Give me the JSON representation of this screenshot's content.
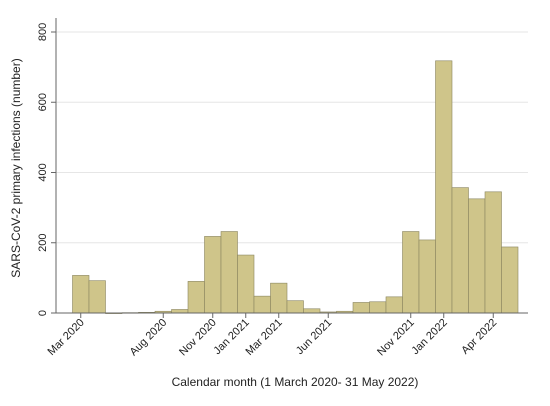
{
  "chart_data": {
    "type": "bar",
    "xlabel": "Calendar month (1 March 2020- 31 May 2022)",
    "ylabel": "SARS-CoV-2 primary infections (number)",
    "ylim": [
      0,
      800
    ],
    "yticks": [
      0,
      200,
      400,
      600,
      800
    ],
    "grid": true,
    "colors": {
      "bar_fill": "#cfc58a",
      "bar_stroke": "#8a8560",
      "grid": "#e6e6e6",
      "axis": "#666666"
    },
    "categories": [
      "Mar 2020",
      "Apr 2020",
      "May 2020",
      "Jun 2020",
      "Jul 2020",
      "Aug 2020",
      "Sep 2020",
      "Oct 2020",
      "Nov 2020",
      "Dec 2020",
      "Jan 2021",
      "Feb 2021",
      "Mar 2021",
      "Apr 2021",
      "May 2021",
      "Jun 2021",
      "Jul 2021",
      "Aug 2021",
      "Sep 2021",
      "Oct 2021",
      "Nov 2021",
      "Dec 2021",
      "Jan 2022",
      "Feb 2022",
      "Mar 2022",
      "Apr 2022",
      "May 2022"
    ],
    "values": [
      107,
      92,
      0,
      1,
      2,
      5,
      10,
      90,
      218,
      232,
      165,
      48,
      85,
      35,
      12,
      3,
      5,
      30,
      32,
      46,
      232,
      208,
      718,
      357,
      325,
      345,
      188
    ],
    "xtick_labels": [
      {
        "index": 0,
        "label": "Mar 2020"
      },
      {
        "index": 5,
        "label": "Aug 2020"
      },
      {
        "index": 8,
        "label": "Nov 2020"
      },
      {
        "index": 10,
        "label": "Jan 2021"
      },
      {
        "index": 12,
        "label": "Mar 2021"
      },
      {
        "index": 15,
        "label": "Jun 2021"
      },
      {
        "index": 20,
        "label": "Nov 2021"
      },
      {
        "index": 22,
        "label": "Jan 2022"
      },
      {
        "index": 25,
        "label": "Apr 2022"
      }
    ]
  }
}
